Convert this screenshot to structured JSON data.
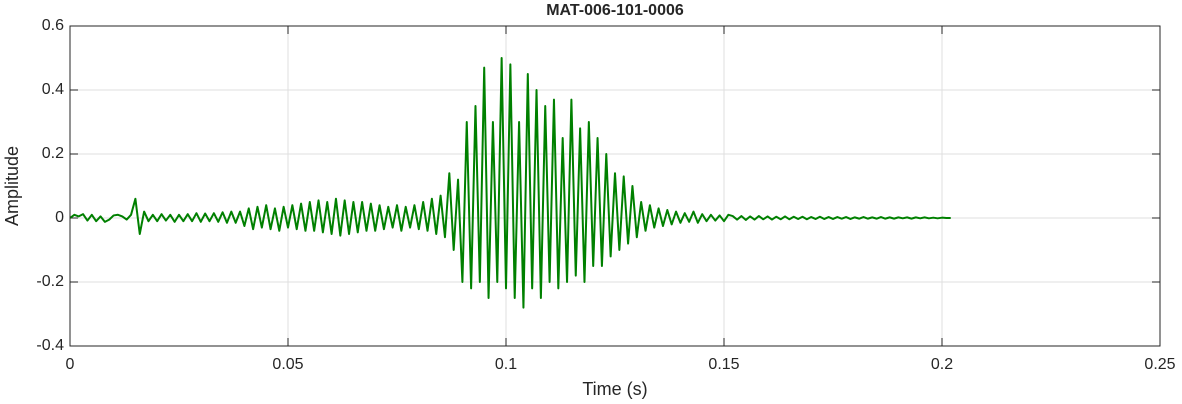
{
  "chart_data": {
    "type": "line",
    "title": "MAT-006-101-0006",
    "x_label": "Time (s)",
    "y_label": "Amplitude",
    "xlim": [
      0,
      0.25
    ],
    "ylim": [
      -0.4,
      0.6
    ],
    "xticks": [
      0,
      0.05,
      0.1,
      0.15,
      0.2,
      0.25
    ],
    "yticks": [
      -0.4,
      -0.2,
      0,
      0.2,
      0.4,
      0.6
    ],
    "grid": true,
    "x": [
      0,
      0.001,
      0.002,
      0.003,
      0.004,
      0.005,
      0.006,
      0.007,
      0.008,
      0.009,
      0.01,
      0.011,
      0.012,
      0.013,
      0.014,
      0.015,
      0.016,
      0.017,
      0.018,
      0.019,
      0.02,
      0.021,
      0.022,
      0.023,
      0.024,
      0.025,
      0.026,
      0.027,
      0.028,
      0.029,
      0.03,
      0.031,
      0.032,
      0.033,
      0.034,
      0.035,
      0.036,
      0.037,
      0.038,
      0.039,
      0.04,
      0.041,
      0.042,
      0.043,
      0.044,
      0.045,
      0.046,
      0.047,
      0.048,
      0.049,
      0.05,
      0.051,
      0.052,
      0.053,
      0.054,
      0.055,
      0.056,
      0.057,
      0.058,
      0.059,
      0.06,
      0.061,
      0.062,
      0.063,
      0.064,
      0.065,
      0.066,
      0.067,
      0.068,
      0.069,
      0.07,
      0.071,
      0.072,
      0.073,
      0.074,
      0.075,
      0.076,
      0.077,
      0.078,
      0.079,
      0.08,
      0.081,
      0.082,
      0.083,
      0.084,
      0.085,
      0.086,
      0.087,
      0.088,
      0.089,
      0.09,
      0.091,
      0.092,
      0.093,
      0.094,
      0.095,
      0.096,
      0.097,
      0.098,
      0.099,
      0.1,
      0.101,
      0.102,
      0.103,
      0.104,
      0.105,
      0.106,
      0.107,
      0.108,
      0.109,
      0.11,
      0.111,
      0.112,
      0.113,
      0.114,
      0.115,
      0.116,
      0.117,
      0.118,
      0.119,
      0.12,
      0.121,
      0.122,
      0.123,
      0.124,
      0.125,
      0.126,
      0.127,
      0.128,
      0.129,
      0.13,
      0.131,
      0.132,
      0.133,
      0.134,
      0.135,
      0.136,
      0.137,
      0.138,
      0.139,
      0.14,
      0.141,
      0.142,
      0.143,
      0.144,
      0.145,
      0.146,
      0.147,
      0.148,
      0.149,
      0.15,
      0.151,
      0.152,
      0.153,
      0.154,
      0.155,
      0.156,
      0.157,
      0.158,
      0.159,
      0.16,
      0.161,
      0.162,
      0.163,
      0.164,
      0.165,
      0.166,
      0.167,
      0.168,
      0.169,
      0.17,
      0.171,
      0.172,
      0.173,
      0.174,
      0.175,
      0.176,
      0.177,
      0.178,
      0.179,
      0.18,
      0.181,
      0.182,
      0.183,
      0.184,
      0.185,
      0.186,
      0.187,
      0.188,
      0.189,
      0.19,
      0.191,
      0.192,
      0.193,
      0.194,
      0.195,
      0.196,
      0.197,
      0.198,
      0.199,
      0.2,
      0.201,
      0.202
    ],
    "series": [
      {
        "color": "#008000",
        "values": [
          0,
          0.01,
          0.005,
          0.012,
          -0.008,
          0.01,
          -0.01,
          0.005,
          -0.012,
          -0.005,
          0.008,
          0.01,
          0.005,
          -0.005,
          0.01,
          0.06,
          -0.05,
          0.02,
          -0.01,
          0.01,
          -0.01,
          0.012,
          -0.008,
          0.01,
          -0.012,
          0.01,
          -0.01,
          0.012,
          -0.01,
          0.015,
          -0.012,
          0.014,
          -0.01,
          0.015,
          -0.012,
          0.018,
          -0.015,
          0.02,
          -0.015,
          0.02,
          -0.025,
          0.03,
          -0.035,
          0.035,
          -0.03,
          0.04,
          -0.035,
          0.03,
          -0.04,
          0.035,
          -0.03,
          0.04,
          -0.035,
          0.045,
          -0.04,
          0.05,
          -0.04,
          0.055,
          -0.045,
          0.05,
          -0.05,
          0.06,
          -0.055,
          0.055,
          -0.05,
          0.05,
          -0.045,
          0.05,
          -0.04,
          0.045,
          -0.04,
          0.04,
          -0.035,
          0.035,
          -0.03,
          0.04,
          -0.04,
          0.035,
          -0.03,
          0.04,
          -0.035,
          0.05,
          -0.04,
          0.06,
          -0.05,
          0.07,
          -0.06,
          0.14,
          -0.1,
          0.12,
          -0.2,
          0.3,
          -0.22,
          0.35,
          -0.2,
          0.47,
          -0.25,
          0.3,
          -0.2,
          0.5,
          -0.22,
          0.48,
          -0.25,
          0.3,
          -0.28,
          0.45,
          -0.22,
          0.4,
          -0.25,
          0.35,
          -0.2,
          0.37,
          -0.22,
          0.25,
          -0.2,
          0.37,
          -0.18,
          0.28,
          -0.2,
          0.3,
          -0.15,
          0.25,
          -0.15,
          0.2,
          -0.12,
          0.14,
          -0.1,
          0.13,
          -0.08,
          0.1,
          -0.06,
          0.05,
          -0.04,
          0.04,
          -0.03,
          0.03,
          -0.025,
          0.025,
          -0.02,
          0.02,
          -0.015,
          0.015,
          -0.012,
          0.02,
          -0.015,
          0.012,
          -0.01,
          0.01,
          -0.008,
          0.008,
          -0.01,
          0.01,
          0.006,
          -0.005,
          0.006,
          -0.006,
          0.005,
          -0.005,
          0.006,
          -0.004,
          0.005,
          -0.005,
          0.004,
          -0.004,
          0.005,
          -0.004,
          0.004,
          -0.003,
          0.004,
          -0.004,
          0.003,
          -0.003,
          0.004,
          -0.003,
          0.003,
          -0.003,
          0.003,
          -0.002,
          0.003,
          -0.003,
          0.002,
          -0.002,
          0.003,
          -0.002,
          0.002,
          -0.002,
          0.003,
          -0.002,
          0.002,
          -0.002,
          0.002,
          -0.001,
          0.002,
          -0.002,
          0.002,
          -0.001,
          0.002,
          -0.001,
          0.001,
          -0.001,
          0.001,
          0,
          0
        ]
      }
    ]
  }
}
